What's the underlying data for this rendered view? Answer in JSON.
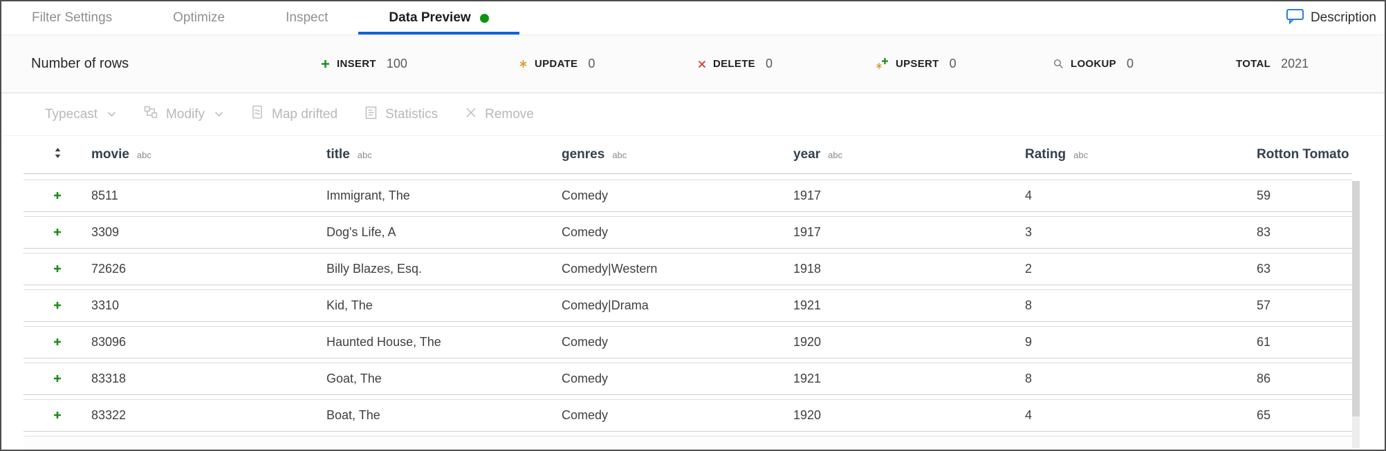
{
  "tabs": {
    "items": [
      {
        "label": "Filter Settings",
        "active": false
      },
      {
        "label": "Optimize",
        "active": false
      },
      {
        "label": "Inspect",
        "active": false
      },
      {
        "label": "Data Preview",
        "active": true
      }
    ]
  },
  "description": {
    "label": "Description"
  },
  "stats": {
    "title": "Number of rows",
    "items": [
      {
        "icon": "insert-plus-icon",
        "label": "INSERT",
        "value": "100"
      },
      {
        "icon": "update-asterisk-icon",
        "label": "UPDATE",
        "value": "0"
      },
      {
        "icon": "delete-x-icon",
        "label": "DELETE",
        "value": "0"
      },
      {
        "icon": "upsert-icon",
        "label": "UPSERT",
        "value": "0"
      },
      {
        "icon": "lookup-icon",
        "label": "LOOKUP",
        "value": "0"
      }
    ],
    "total": {
      "label": "TOTAL",
      "value": "2021"
    }
  },
  "toolbar": {
    "items": [
      {
        "label": "Typecast",
        "icon": "",
        "dropdown": true,
        "disabled": true
      },
      {
        "label": "Modify",
        "icon": "modify-icon",
        "dropdown": true,
        "disabled": true
      },
      {
        "label": "Map drifted",
        "icon": "map-drifted-icon",
        "dropdown": false,
        "disabled": true
      },
      {
        "label": "Statistics",
        "icon": "statistics-icon",
        "dropdown": false,
        "disabled": true
      },
      {
        "label": "Remove",
        "icon": "remove-x-icon",
        "dropdown": false,
        "disabled": true
      }
    ]
  },
  "table": {
    "columns": [
      {
        "label": "movie",
        "type": "abc"
      },
      {
        "label": "title",
        "type": "abc"
      },
      {
        "label": "genres",
        "type": "abc"
      },
      {
        "label": "year",
        "type": "abc"
      },
      {
        "label": "Rating",
        "type": "abc"
      },
      {
        "label": "Rotton Tomato",
        "type": "abc"
      }
    ],
    "rows": [
      {
        "marker": "insert",
        "cells": [
          "8511",
          "Immigrant, The",
          "Comedy",
          "1917",
          "4",
          "59"
        ]
      },
      {
        "marker": "insert",
        "cells": [
          "3309",
          "Dog's Life, A",
          "Comedy",
          "1917",
          "3",
          "83"
        ]
      },
      {
        "marker": "insert",
        "cells": [
          "72626",
          "Billy Blazes, Esq.",
          "Comedy|Western",
          "1918",
          "2",
          "63"
        ]
      },
      {
        "marker": "insert",
        "cells": [
          "3310",
          "Kid, The",
          "Comedy|Drama",
          "1921",
          "8",
          "57"
        ]
      },
      {
        "marker": "insert",
        "cells": [
          "83096",
          "Haunted House, The",
          "Comedy",
          "1920",
          "9",
          "61"
        ]
      },
      {
        "marker": "insert",
        "cells": [
          "83318",
          "Goat, The",
          "Comedy",
          "1921",
          "8",
          "86"
        ]
      },
      {
        "marker": "insert",
        "cells": [
          "83322",
          "Boat, The",
          "Comedy",
          "1920",
          "4",
          "65"
        ]
      }
    ]
  },
  "colors": {
    "accent_blue": "#1463d8",
    "status_green": "#109310",
    "insert_green": "#1e8c1e",
    "update_orange": "#d9982b",
    "delete_red": "#d8402f"
  }
}
